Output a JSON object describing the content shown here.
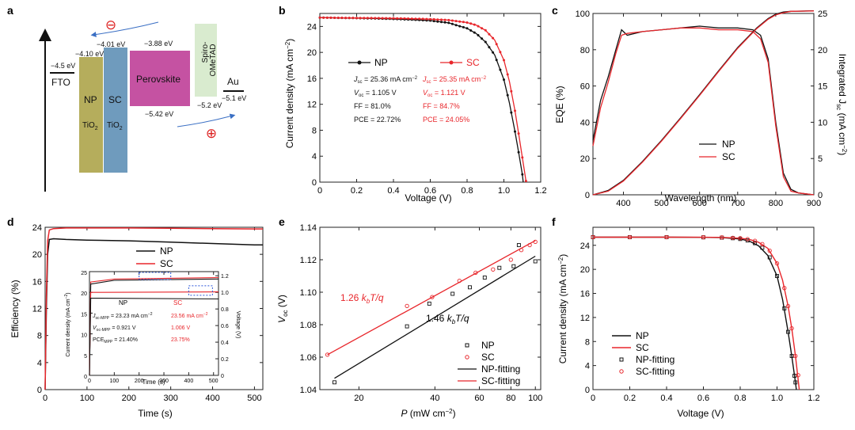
{
  "colors": {
    "np": "#111111",
    "sc": "#e8262b",
    "axis": "#222222",
    "tio2_np": "#b5ad5c",
    "tio2_sc": "#6f9bbd",
    "perovskite": "#c552a2",
    "spiro": "#d9ebcf",
    "inset_box": "#2a55d8"
  },
  "panel_letters": [
    "a",
    "b",
    "c",
    "d",
    "e",
    "f"
  ],
  "a": {
    "levels": {
      "fto": "−4.5 eV",
      "np": "−4.10 eV",
      "sc": "−4.01 eV",
      "pvk_cb": "−3.88 eV",
      "pvk_vb": "−5.42 eV",
      "spiro_homo": "−5.2 eV",
      "au": "−5.1 eV"
    },
    "labels": {
      "fto": "FTO",
      "np": "NP",
      "sc": "SC",
      "tio": "TiO",
      "sub2": "2",
      "pvk": "Perovskite",
      "spiro1": "Spiro-",
      "spiro2": "OMeTAD",
      "au": "Au",
      "minus": "⊖",
      "plus": "⊕"
    }
  },
  "b": {
    "xlabel": "Voltage (V)",
    "ylabel": "Current density (mA cm",
    "ylabel_sup": "−2",
    "ylabel_end": ")",
    "xlim": [
      0,
      1.2
    ],
    "ylim": [
      0,
      26
    ],
    "xticks": [
      "0",
      "0.2",
      "0.4",
      "0.6",
      "0.8",
      "1.0",
      "1.2"
    ],
    "yticks": [
      "0",
      "4",
      "8",
      "12",
      "16",
      "20",
      "24"
    ],
    "legend": {
      "np": "NP",
      "sc": "SC"
    },
    "np_stats": [
      {
        "pre": "J",
        "sub": "sc",
        "post": " = 25.36 mA cm",
        "sup": "−2"
      },
      {
        "pre": "V",
        "sub": "oc",
        "post": " = 1.105 V",
        "sup": ""
      },
      {
        "pre": "FF = 81.0%",
        "sub": "",
        "post": "",
        "sup": ""
      },
      {
        "pre": "PCE = 22.72%",
        "sub": "",
        "post": "",
        "sup": ""
      }
    ],
    "sc_stats": [
      {
        "pre": "J",
        "sub": "sc",
        "post": " = 25.35 mA cm",
        "sup": "−2"
      },
      {
        "pre": "V",
        "sub": "oc",
        "post": " = 1.121 V",
        "sup": ""
      },
      {
        "pre": "FF = 84.7%",
        "sub": "",
        "post": "",
        "sup": ""
      },
      {
        "pre": "PCE = 24.05%",
        "sub": "",
        "post": "",
        "sup": ""
      }
    ]
  },
  "c": {
    "xlabel": "Wavelength (nm)",
    "ylabel_left": "EQE (%)",
    "ylabel_right": "Integrated J",
    "ylabel_right_sub": "sc",
    "ylabel_right_end": " (mA cm",
    "ylabel_right_sup": "−2",
    "ylabel_right_close": ")",
    "xlim": [
      320,
      900
    ],
    "ylim_left": [
      0,
      100
    ],
    "ylim_right": [
      0,
      25
    ],
    "xticks": [
      "400",
      "500",
      "600",
      "700",
      "800",
      "900"
    ],
    "yticks_left": [
      "0",
      "20",
      "40",
      "60",
      "80",
      "100"
    ],
    "yticks_right": [
      "0",
      "5",
      "10",
      "15",
      "20",
      "25"
    ],
    "legend": {
      "np": "NP",
      "sc": "SC"
    }
  },
  "d": {
    "xlabel": "Time (s)",
    "ylabel": "Efficiency (%)",
    "xlim": [
      0,
      520
    ],
    "ylim": [
      0,
      24
    ],
    "xticks": [
      "0",
      "100",
      "200",
      "300",
      "400",
      "500"
    ],
    "yticks": [
      "0",
      "4",
      "8",
      "12",
      "16",
      "20",
      "24"
    ],
    "legend": {
      "np": "NP",
      "sc": "SC"
    },
    "inset": {
      "xlabel": "Time (s)",
      "ylabel_left": "Current density (mA cm",
      "ylabel_left_sup": "−2",
      "ylabel_left_end": ")",
      "ylabel_right": "Voltage (V)",
      "xticks": [
        "0",
        "100",
        "200",
        "300",
        "400",
        "500"
      ],
      "yticks_left": [
        "0",
        "5",
        "10",
        "15",
        "20",
        "25"
      ],
      "yticks_right": [
        "0",
        "0.2",
        "0.4",
        "0.6",
        "0.8",
        "1.0",
        "1.2"
      ],
      "head_np": "NP",
      "head_sc": "SC",
      "rows": [
        {
          "pre": "J",
          "sub": "sc-MPP",
          "post": " = 23.23 mA cm",
          "sup": "−2",
          "sc": "23.56 mA cm",
          "sc_sup": "−2"
        },
        {
          "pre": "V",
          "sub": "oc-MPP",
          "post": " = 0.921 V",
          "sup": "",
          "sc": "1.006 V",
          "sc_sup": ""
        },
        {
          "pre": "PCE",
          "sub": "MPP",
          "post": " = 21.40%",
          "sup": "",
          "sc": "23.75%",
          "sc_sup": ""
        }
      ]
    }
  },
  "e": {
    "xlabel_pre": "P",
    "xlabel_post": " (mW cm",
    "xlabel_sup": "−2",
    "xlabel_end": ")",
    "ylabel_pre": "V",
    "ylabel_sub": "oc",
    "ylabel_end": " (V)",
    "xlim": [
      14,
      105
    ],
    "ylim": [
      1.04,
      1.14
    ],
    "xticks": [
      "20",
      "40",
      "60",
      "80",
      "100"
    ],
    "yticks": [
      "1.04",
      "1.06",
      "1.08",
      "1.10",
      "1.12",
      "1.14"
    ],
    "ann_sc": {
      "num": "1.26 ",
      "k": "k",
      "sub": "b",
      "tail": "T/q"
    },
    "ann_np": {
      "num": "1.46 ",
      "k": "k",
      "sub": "b",
      "tail": "T/q"
    },
    "legend": [
      "NP",
      "SC",
      "NP-fitting",
      "SC-fitting"
    ]
  },
  "f": {
    "xlabel": "Voltage (V)",
    "ylabel": "Current density (mA cm",
    "ylabel_sup": "−2",
    "ylabel_end": ")",
    "xlim": [
      0,
      1.2
    ],
    "ylim": [
      0,
      27
    ],
    "xticks": [
      "0",
      "0.2",
      "0.4",
      "0.6",
      "0.8",
      "1.0",
      "1.2"
    ],
    "yticks": [
      "0",
      "4",
      "8",
      "12",
      "16",
      "20",
      "24"
    ],
    "legend": [
      "NP",
      "SC",
      "NP-fitting",
      "SC-fitting"
    ]
  },
  "chart_data": [
    {
      "panel": "b",
      "type": "line",
      "title": "",
      "xlabel": "Voltage (V)",
      "ylabel": "Current density (mA cm−2)",
      "xlim": [
        0,
        1.2
      ],
      "ylim": [
        0,
        26
      ],
      "series": [
        {
          "name": "NP",
          "x": [
            0,
            0.1,
            0.2,
            0.3,
            0.4,
            0.5,
            0.6,
            0.7,
            0.8,
            0.85,
            0.9,
            0.95,
            1.0,
            1.03,
            1.06,
            1.08,
            1.1,
            1.105
          ],
          "y": [
            25.36,
            25.32,
            25.28,
            25.22,
            25.15,
            25.05,
            24.9,
            24.55,
            23.7,
            22.9,
            21.6,
            19.6,
            15.8,
            12.2,
            7.8,
            4.6,
            1.2,
            0
          ]
        },
        {
          "name": "SC",
          "x": [
            0,
            0.1,
            0.2,
            0.3,
            0.4,
            0.5,
            0.6,
            0.7,
            0.8,
            0.85,
            0.9,
            0.95,
            1.0,
            1.03,
            1.06,
            1.08,
            1.1,
            1.121
          ],
          "y": [
            25.35,
            25.33,
            25.31,
            25.28,
            25.25,
            25.2,
            25.12,
            24.98,
            24.6,
            24.2,
            23.4,
            21.9,
            18.8,
            15.5,
            11.0,
            7.5,
            3.8,
            0
          ]
        }
      ]
    },
    {
      "panel": "c",
      "type": "line",
      "title": "",
      "xlabel": "Wavelength (nm)",
      "ylabel": "EQE (%) / Integrated Jsc (mA cm−2)",
      "xlim": [
        320,
        900
      ],
      "ylim": [
        0,
        100
      ],
      "series": [
        {
          "name": "NP EQE",
          "x": [
            320,
            340,
            360,
            380,
            395,
            410,
            450,
            500,
            550,
            600,
            650,
            700,
            740,
            760,
            780,
            800,
            820,
            840,
            860,
            900
          ],
          "y": [
            30,
            52,
            65,
            80,
            91,
            88,
            90,
            91,
            92,
            93,
            92,
            92,
            91,
            88,
            75,
            40,
            12,
            3,
            1,
            0
          ]
        },
        {
          "name": "SC EQE",
          "x": [
            320,
            340,
            360,
            380,
            395,
            410,
            450,
            500,
            550,
            600,
            650,
            700,
            740,
            760,
            780,
            800,
            820,
            840,
            860,
            900
          ],
          "y": [
            27,
            48,
            62,
            78,
            88,
            89,
            90,
            91,
            92,
            92,
            91,
            91,
            90,
            86,
            73,
            38,
            10,
            2,
            1,
            0
          ]
        },
        {
          "name": "NP Integrated Jsc",
          "x": [
            320,
            360,
            400,
            450,
            500,
            550,
            600,
            650,
            700,
            750,
            780,
            800,
            820,
            840,
            900
          ],
          "y": [
            0,
            0.6,
            2.0,
            4.6,
            7.5,
            10.6,
            13.8,
            17.1,
            20.3,
            23.0,
            24.3,
            24.9,
            25.2,
            25.3,
            25.36
          ]
        },
        {
          "name": "SC Integrated Jsc",
          "x": [
            320,
            360,
            400,
            450,
            500,
            550,
            600,
            650,
            700,
            750,
            780,
            800,
            820,
            840,
            900
          ],
          "y": [
            0,
            0.5,
            1.9,
            4.5,
            7.4,
            10.5,
            13.7,
            17.0,
            20.2,
            22.9,
            24.2,
            24.8,
            25.1,
            25.3,
            25.35
          ]
        }
      ]
    },
    {
      "panel": "d",
      "type": "line",
      "title": "",
      "xlabel": "Time (s)",
      "ylabel": "Efficiency (%)",
      "xlim": [
        0,
        520
      ],
      "ylim": [
        0,
        24
      ],
      "series": [
        {
          "name": "NP",
          "x": [
            0,
            3,
            6,
            10,
            20,
            50,
            100,
            200,
            300,
            400,
            500,
            520
          ],
          "y": [
            0,
            12,
            20,
            22.2,
            22.3,
            22.2,
            22.1,
            22.0,
            21.8,
            21.6,
            21.4,
            21.4
          ]
        },
        {
          "name": "SC",
          "x": [
            0,
            3,
            6,
            10,
            20,
            50,
            100,
            200,
            300,
            400,
            500,
            520
          ],
          "y": [
            0,
            14,
            22,
            23.6,
            23.8,
            23.9,
            23.9,
            23.9,
            23.85,
            23.8,
            23.75,
            23.75
          ]
        }
      ]
    },
    {
      "panel": "e",
      "type": "scatter",
      "title": "",
      "xlabel": "P (mW cm−2)",
      "ylabel": "Voc (V)",
      "xscale": "log",
      "xlim": [
        14,
        105
      ],
      "ylim": [
        1.04,
        1.14
      ],
      "series": [
        {
          "name": "NP",
          "x": [
            16,
            31,
            38,
            47,
            55,
            63,
            72,
            82,
            86,
            100
          ],
          "y": [
            1.0445,
            1.079,
            1.093,
            1.099,
            1.103,
            1.109,
            1.115,
            1.116,
            1.129,
            1.119
          ]
        },
        {
          "name": "SC",
          "x": [
            15,
            31,
            39,
            50,
            58,
            68,
            80,
            88,
            95,
            100
          ],
          "y": [
            1.0615,
            1.0915,
            1.097,
            1.107,
            1.112,
            1.114,
            1.12,
            1.126,
            1.129,
            1.131
          ]
        },
        {
          "name": "NP-fitting",
          "x": [
            16,
            100
          ],
          "y": [
            1.047,
            1.1222
          ]
        },
        {
          "name": "SC-fitting",
          "x": [
            15,
            100
          ],
          "y": [
            1.0615,
            1.1318
          ]
        }
      ]
    },
    {
      "panel": "f",
      "type": "line",
      "title": "",
      "xlabel": "Voltage (V)",
      "ylabel": "Current density (mA cm−2)",
      "xlim": [
        0,
        1.2
      ],
      "ylim": [
        0,
        27
      ],
      "series": [
        {
          "name": "NP",
          "x": [
            0,
            0.2,
            0.4,
            0.6,
            0.7,
            0.8,
            0.85,
            0.9,
            0.95,
            1.0,
            1.03,
            1.06,
            1.08,
            1.1,
            1.105
          ],
          "y": [
            25.36,
            25.36,
            25.35,
            25.33,
            25.28,
            25.05,
            24.7,
            23.9,
            22.3,
            18.9,
            15.0,
            9.6,
            5.6,
            1.2,
            0
          ]
        },
        {
          "name": "SC",
          "x": [
            0,
            0.2,
            0.4,
            0.6,
            0.7,
            0.8,
            0.85,
            0.9,
            0.95,
            1.0,
            1.03,
            1.06,
            1.08,
            1.1,
            1.121
          ],
          "y": [
            25.35,
            25.35,
            25.35,
            25.34,
            25.31,
            25.18,
            24.98,
            24.5,
            23.5,
            21.0,
            18.2,
            13.9,
            10.2,
            5.6,
            0
          ]
        },
        {
          "name": "NP-fitting",
          "x": [
            0,
            0.2,
            0.4,
            0.6,
            0.7,
            0.76,
            0.8,
            0.84,
            0.88,
            0.92,
            0.96,
            1.0,
            1.04,
            1.06,
            1.08,
            1.095,
            1.1
          ],
          "y": [
            25.36,
            25.36,
            25.35,
            25.33,
            25.28,
            25.18,
            25.05,
            24.8,
            24.35,
            23.6,
            22.0,
            18.9,
            13.5,
            9.6,
            5.6,
            2.3,
            1.2
          ]
        },
        {
          "name": "SC-fitting",
          "x": [
            0,
            0.2,
            0.4,
            0.6,
            0.7,
            0.76,
            0.8,
            0.84,
            0.88,
            0.92,
            0.96,
            1.0,
            1.04,
            1.06,
            1.08,
            1.1,
            1.115
          ],
          "y": [
            25.35,
            25.35,
            25.35,
            25.34,
            25.31,
            25.24,
            25.18,
            25.03,
            24.75,
            24.2,
            23.1,
            21.0,
            16.9,
            13.9,
            10.2,
            5.6,
            2.4
          ]
        }
      ]
    }
  ]
}
